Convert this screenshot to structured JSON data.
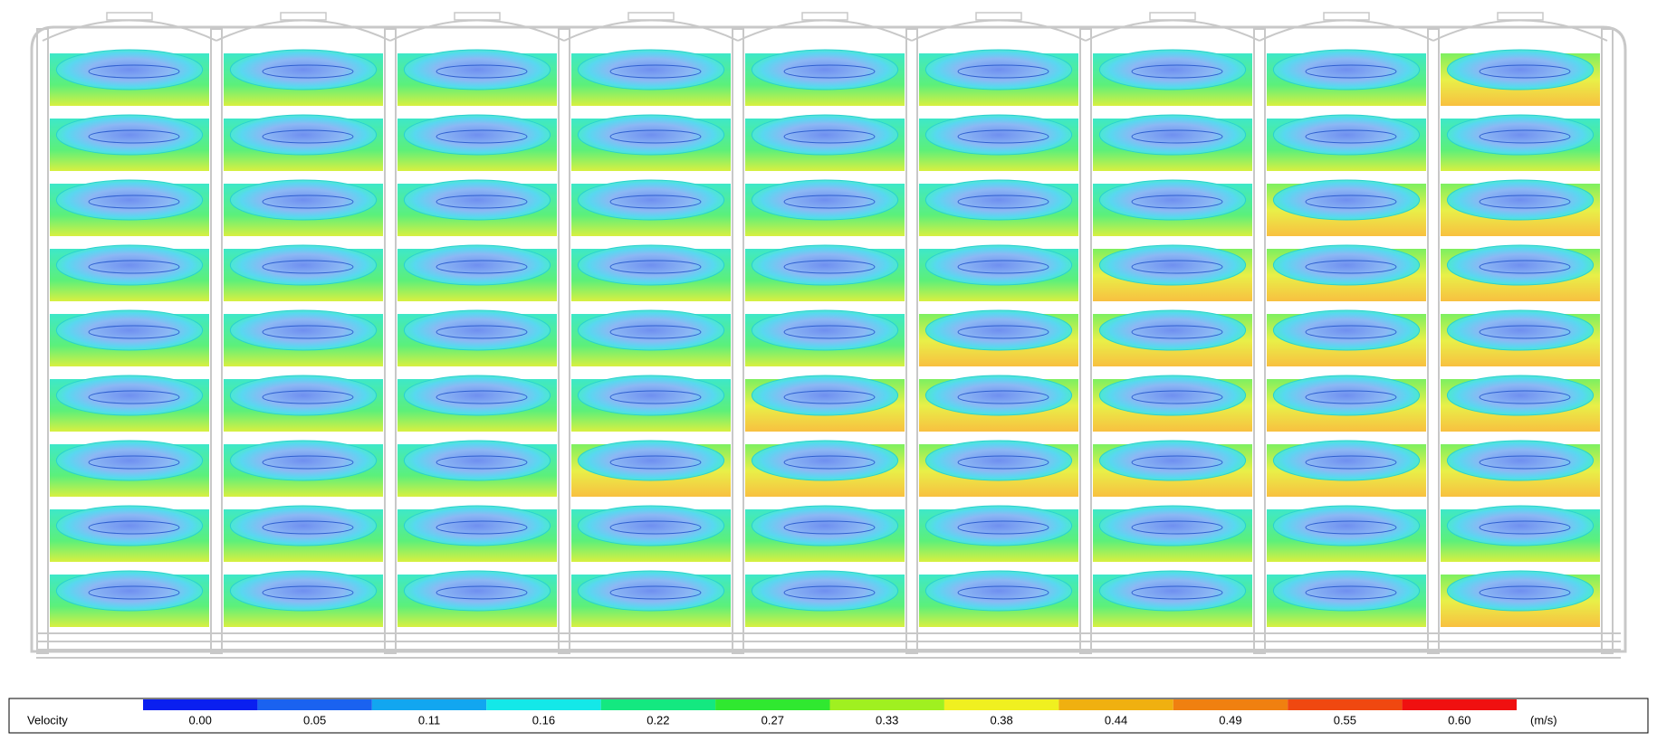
{
  "legend": {
    "label": "Velocity",
    "unit": "(m/s)",
    "ticks": [
      "0.00",
      "0.05",
      "0.11",
      "0.16",
      "0.22",
      "0.27",
      "0.33",
      "0.38",
      "0.44",
      "0.49",
      "0.55",
      "0.60"
    ],
    "colors": [
      "#0a1ff0",
      "#1a62f0",
      "#12a6f0",
      "#14e8e8",
      "#14e880",
      "#30e830",
      "#a0f020",
      "#f0f020",
      "#f0b010",
      "#f08010",
      "#f04810",
      "#f01010"
    ]
  }
}
